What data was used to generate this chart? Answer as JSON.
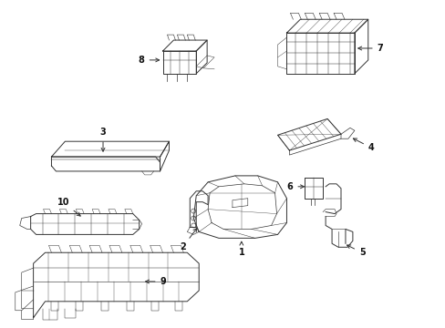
{
  "bg_color": "#ffffff",
  "line_color": "#333333",
  "label_color": "#111111",
  "fig_width": 4.89,
  "fig_height": 3.6,
  "dpi": 100
}
